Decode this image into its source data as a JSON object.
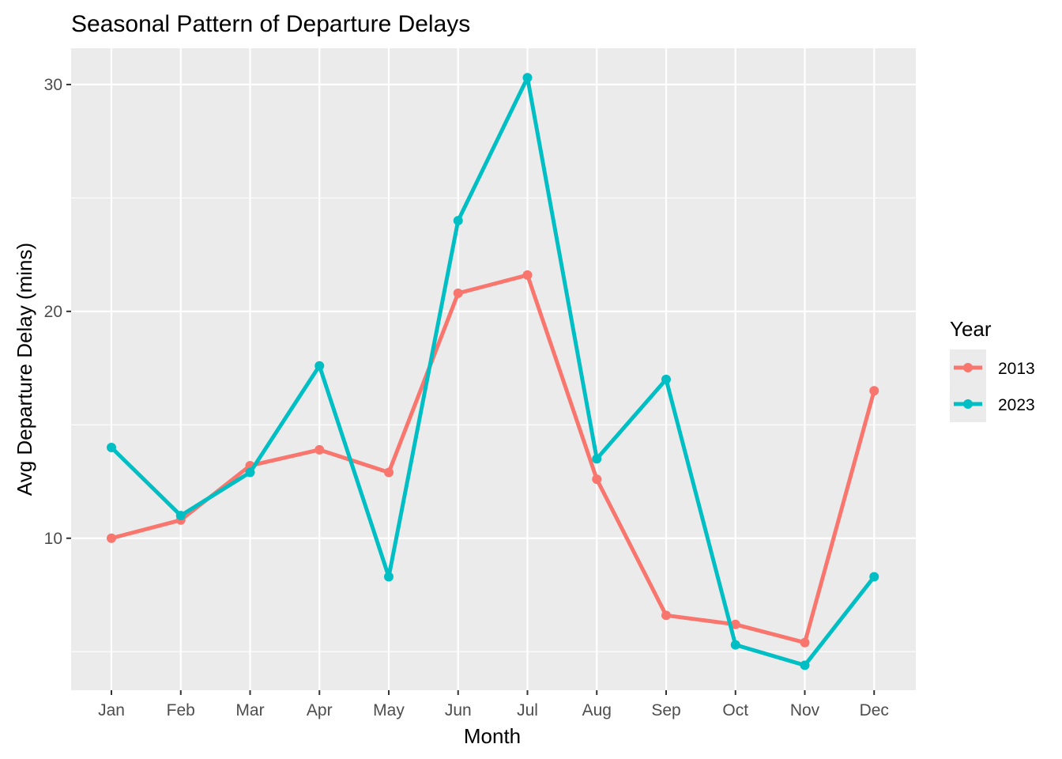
{
  "chart_data": {
    "type": "line",
    "title": "Seasonal Pattern of Departure Delays",
    "xlabel": "Month",
    "ylabel": "Avg Departure Delay (mins)",
    "categories": [
      "Jan",
      "Feb",
      "Mar",
      "Apr",
      "May",
      "Jun",
      "Jul",
      "Aug",
      "Sep",
      "Oct",
      "Nov",
      "Dec"
    ],
    "ylim": [
      3.3,
      31.6
    ],
    "yticks": [
      10,
      20,
      30
    ],
    "grid": true,
    "legend_title": "Year",
    "legend_position": "right",
    "series": [
      {
        "name": "2013",
        "color": "#F8766D",
        "values": [
          10.0,
          10.8,
          13.2,
          13.9,
          12.9,
          20.8,
          21.6,
          12.6,
          6.6,
          6.2,
          5.4,
          16.5
        ]
      },
      {
        "name": "2023",
        "color": "#00BFC4",
        "values": [
          14.0,
          11.0,
          12.9,
          17.6,
          8.3,
          24.0,
          30.3,
          13.5,
          17.0,
          5.3,
          4.4,
          8.3
        ]
      }
    ],
    "panel_background": "#EBEBEB",
    "grid_color": "#FFFFFF"
  }
}
